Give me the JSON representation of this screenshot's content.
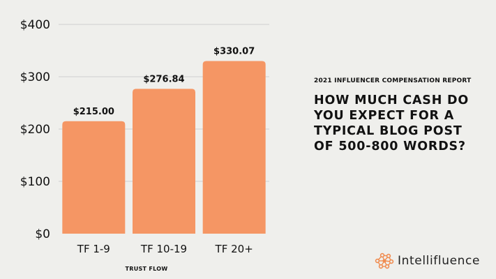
{
  "chart_data": {
    "type": "bar",
    "categories": [
      "TF 1-9",
      "TF 10-19",
      "TF 20+"
    ],
    "values": [
      215.0,
      276.84,
      330.07
    ],
    "value_labels": [
      "$215.00",
      "$276.84",
      "$330.07"
    ],
    "title": "",
    "xlabel": "TRUST FLOW",
    "ylabel": "",
    "ylim": [
      0,
      400
    ],
    "yticks": [
      0,
      100,
      200,
      300,
      400
    ],
    "ytick_labels": [
      "$0",
      "$100",
      "$200",
      "$300",
      "$400"
    ],
    "grid": true,
    "bar_color": "#f59664"
  },
  "sidebar": {
    "report_subtitle": "2021 INFLUENCER COMPENSATION REPORT",
    "question_lines": [
      "HOW MUCH CASH DO",
      "YOU EXPECT FOR A",
      "TYPICAL BLOG POST",
      "OF 500-800 WORDS?"
    ]
  },
  "brand": {
    "name": "Intellifluence",
    "logo_icon": "network-nodes-icon",
    "logo_color": "#f08c50"
  },
  "colors": {
    "background": "#efefec",
    "text": "#111111",
    "gridline": "#cfcfcf"
  }
}
